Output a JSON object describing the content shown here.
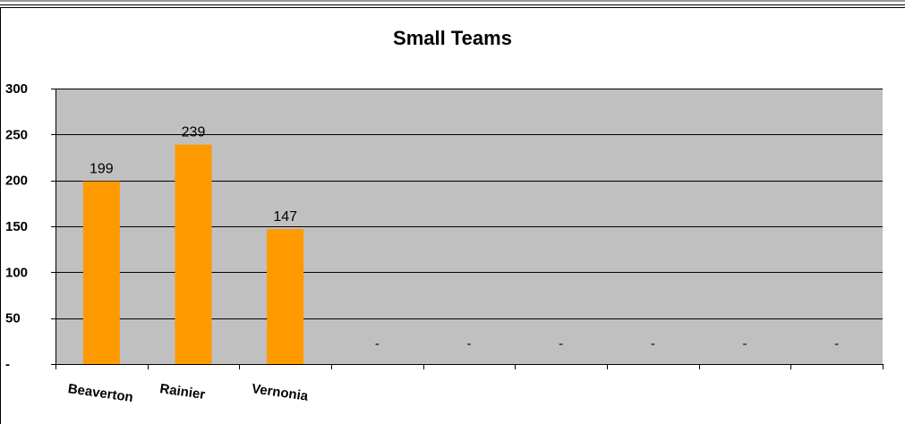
{
  "chart_data": {
    "type": "bar",
    "title": "Small Teams",
    "xlabel": "",
    "ylabel": "",
    "categories": [
      "Beaverton",
      "Rainier",
      "Vernonia",
      "",
      "",
      "",
      "",
      "",
      ""
    ],
    "values": [
      199,
      239,
      147,
      0,
      0,
      0,
      0,
      0,
      0
    ],
    "data_labels": [
      "199",
      "239",
      "147",
      "-",
      "-",
      "-",
      "-",
      "-",
      "-"
    ],
    "ylim": [
      0,
      300
    ],
    "yticks": [
      0,
      50,
      100,
      150,
      200,
      250,
      300
    ],
    "ytick_labels": [
      "-",
      "50",
      "100",
      "150",
      "200",
      "250",
      "300"
    ],
    "grid": true,
    "legend": "none",
    "colors": {
      "bar": "#ff9900",
      "plot_background": "#c0c0c0",
      "gridline": "#000000"
    }
  }
}
